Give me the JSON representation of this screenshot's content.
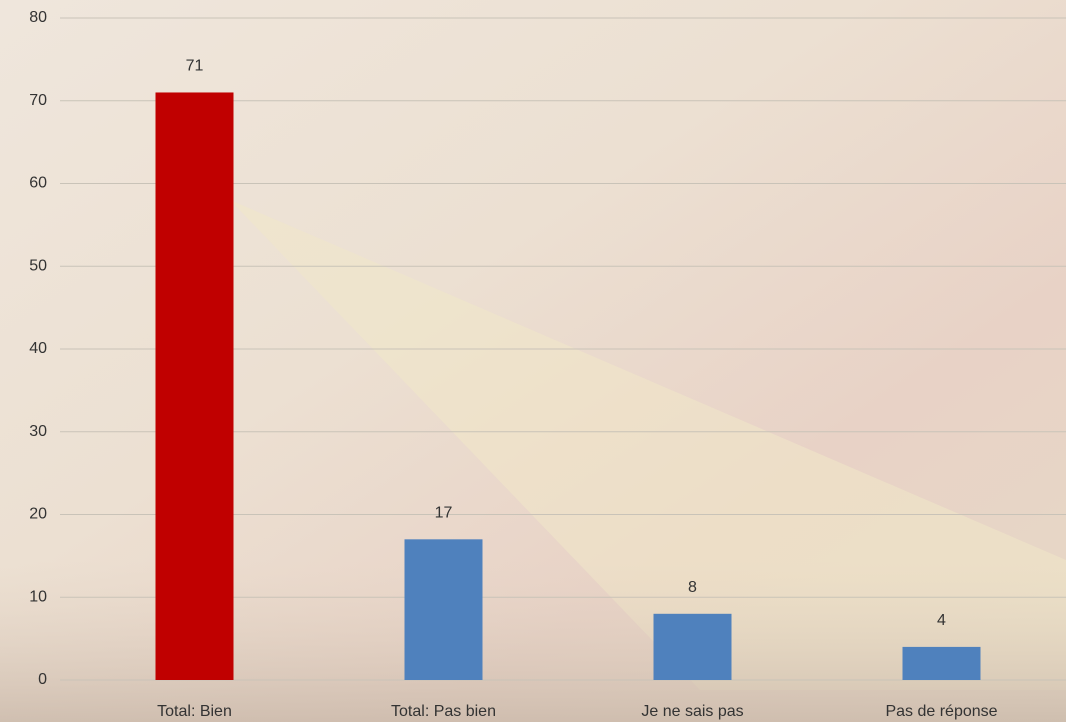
{
  "chart_data": {
    "type": "bar",
    "categories": [
      "Total: Bien",
      "Total: Pas bien",
      "Je ne sais pas",
      "Pas de réponse"
    ],
    "values": [
      71,
      17,
      8,
      4
    ],
    "colors": [
      "#c00000",
      "#4f81bd",
      "#4f81bd",
      "#4f81bd"
    ],
    "ylim": [
      0,
      80
    ],
    "yticks": [
      0,
      10,
      20,
      30,
      40,
      50,
      60,
      70,
      80
    ],
    "grid": true
  }
}
